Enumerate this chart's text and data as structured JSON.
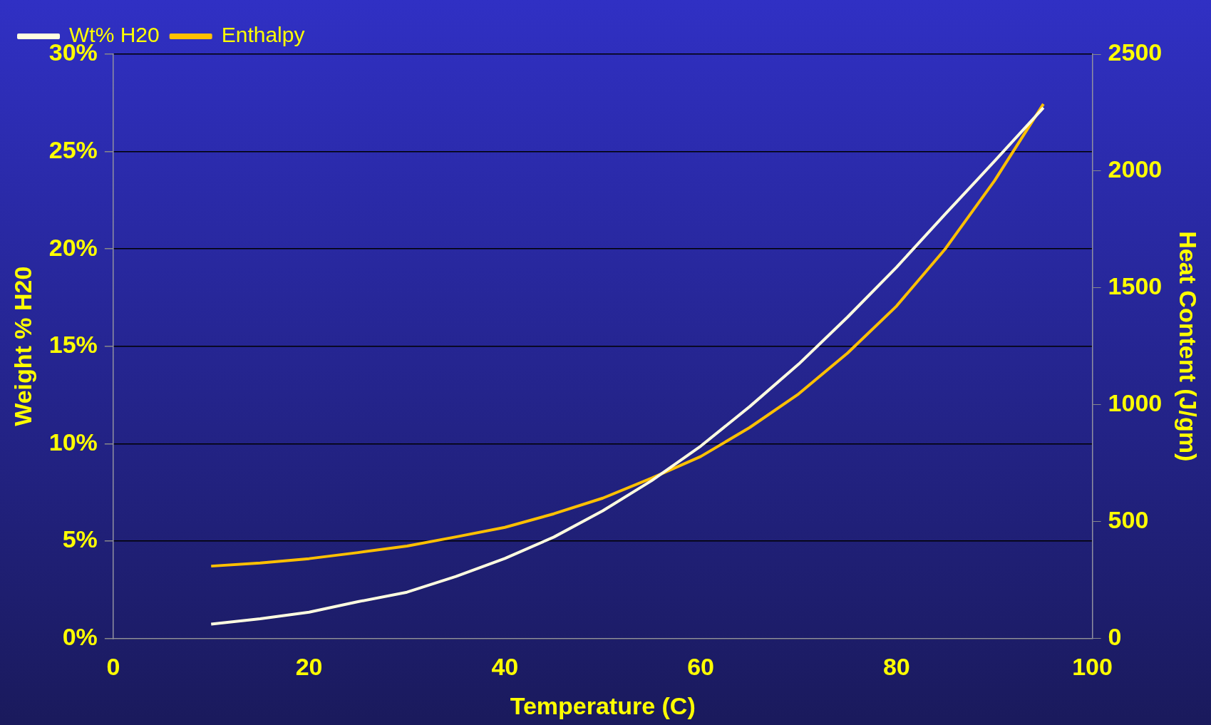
{
  "chart_data": {
    "type": "line",
    "xlabel": "Temperature (C)",
    "ylabel": "Weight % H20",
    "y2label": "Heat Content (J/gm)",
    "x": [
      10,
      15,
      20,
      25,
      30,
      35,
      40,
      45,
      50,
      55,
      60,
      65,
      70,
      75,
      80,
      85,
      90,
      95
    ],
    "series": [
      {
        "name": "Wt% H20",
        "color": "#fffde0",
        "values": [
          0.73,
          1.0,
          1.34,
          1.88,
          2.37,
          3.18,
          4.1,
          5.2,
          6.55,
          8.1,
          9.87,
          11.9,
          14.08,
          16.5,
          19.06,
          21.8,
          24.5,
          27.25
        ]
      },
      {
        "name": "Enthalpy",
        "color": "#ffc000",
        "axis": "y2",
        "values": [
          309,
          322,
          341,
          367,
          395,
          434,
          475,
          533,
          600,
          686,
          778,
          902,
          1046,
          1221,
          1422,
          1668,
          1958,
          2287
        ]
      }
    ],
    "xlim": [
      0,
      100
    ],
    "xticks": [
      0,
      20,
      40,
      60,
      80,
      100
    ],
    "ylim": [
      0,
      30
    ],
    "yticks": [
      {
        "value": 0,
        "label": "0%"
      },
      {
        "value": 5,
        "label": "5%"
      },
      {
        "value": 10,
        "label": "10%"
      },
      {
        "value": 15,
        "label": "15%"
      },
      {
        "value": 20,
        "label": "20%"
      },
      {
        "value": 25,
        "label": "25%"
      },
      {
        "value": 30,
        "label": "30%"
      }
    ],
    "y2lim": [
      0,
      2500
    ],
    "y2ticks": [
      0,
      500,
      1000,
      1500,
      2000,
      2500
    ],
    "grid": "y",
    "legend": "top left",
    "marker": "none",
    "line_style": "solid"
  }
}
